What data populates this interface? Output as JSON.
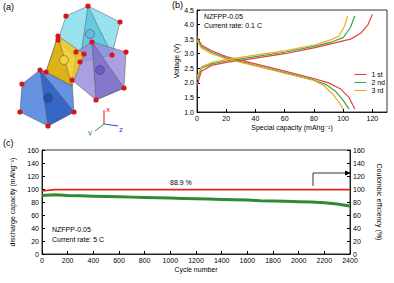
{
  "diagram": {
    "label": "(a)",
    "axes": [
      "x",
      "y",
      "z"
    ]
  },
  "chart_data": [
    {
      "type": "line",
      "title": "(b)",
      "x_label": "Special capacity (mAhg⁻¹)",
      "y_label": "Voltage (V)",
      "annotations": [
        "NZFPP-0.05",
        "Current rate: 0.1 C"
      ],
      "xlim": [
        0,
        130
      ],
      "xticks": [
        0,
        20,
        40,
        60,
        80,
        100,
        120
      ],
      "ylim": [
        1,
        4.5
      ],
      "yticks": [
        {
          "value": 1,
          "label": "1.0"
        },
        1.5,
        {
          "value": 2,
          "label": "2.0"
        },
        2.5,
        {
          "value": 3,
          "label": "3.0"
        },
        3.5,
        {
          "value": 4,
          "label": "4.0"
        },
        4.5
      ],
      "grid": false,
      "legend": "lower right",
      "series": [
        {
          "name": "1 st",
          "color": "#e8403a",
          "x": [
            0,
            3,
            10,
            20,
            40,
            60,
            80,
            95,
            105,
            112,
            117,
            120,
            null,
            0,
            3,
            10,
            20,
            40,
            60,
            80,
            90,
            98,
            104,
            108
          ],
          "values": [
            1.9,
            2.4,
            2.6,
            2.7,
            2.85,
            3.0,
            3.2,
            3.38,
            3.5,
            3.7,
            4.0,
            4.35,
            null,
            3.6,
            3.3,
            3.1,
            2.9,
            2.65,
            2.4,
            2.15,
            2.0,
            1.8,
            1.5,
            1.1
          ]
        },
        {
          "name": "2 nd",
          "color": "#3aa64a",
          "x": [
            0,
            3,
            10,
            20,
            40,
            60,
            80,
            92,
            100,
            105,
            108,
            null,
            0,
            3,
            10,
            20,
            40,
            60,
            80,
            88,
            95,
            100,
            104
          ],
          "values": [
            2.1,
            2.5,
            2.65,
            2.75,
            2.9,
            3.05,
            3.25,
            3.4,
            3.55,
            3.9,
            4.3,
            null,
            3.5,
            3.25,
            3.05,
            2.85,
            2.6,
            2.35,
            2.1,
            1.95,
            1.7,
            1.4,
            1.1
          ]
        },
        {
          "name": "3 rd",
          "color": "#f5a623",
          "x": [
            0,
            3,
            10,
            20,
            40,
            60,
            80,
            90,
            97,
            101,
            103,
            null,
            0,
            3,
            10,
            20,
            40,
            60,
            80,
            87,
            93,
            97,
            100
          ],
          "values": [
            2.2,
            2.55,
            2.7,
            2.8,
            2.95,
            3.1,
            3.3,
            3.45,
            3.6,
            3.95,
            4.3,
            null,
            3.45,
            3.2,
            3.0,
            2.82,
            2.58,
            2.33,
            2.08,
            1.9,
            1.6,
            1.35,
            1.1
          ]
        }
      ]
    },
    {
      "type": "line",
      "title": "(c)",
      "x_label": "Cycle number",
      "y_label": "discharge capacity (mAhg⁻¹)",
      "y2_label": "Coulombic efficiency (%)",
      "annotations": [
        "88.9 %",
        "NZFPP-0.05",
        "Current rate: 5 C"
      ],
      "xlim": [
        0,
        2400
      ],
      "xticks": [
        0,
        200,
        400,
        600,
        800,
        1000,
        1200,
        1400,
        1600,
        1800,
        2000,
        2200,
        2400
      ],
      "ylim": [
        0,
        160
      ],
      "yticks": [
        0,
        20,
        40,
        60,
        80,
        100,
        120,
        140,
        160
      ],
      "y2lim": [
        0,
        160
      ],
      "y2ticks": [
        0,
        20,
        40,
        60,
        80,
        100,
        120,
        140,
        160
      ],
      "grid": false,
      "x": [
        0,
        100,
        200,
        300,
        400,
        500,
        600,
        700,
        800,
        900,
        1000,
        1100,
        1200,
        1300,
        1400,
        1500,
        1600,
        1700,
        1800,
        1900,
        2000,
        2100,
        2200,
        2300,
        2400
      ],
      "series": [
        {
          "color": "#2e8b2e",
          "values": [
            90,
            91,
            90,
            89.5,
            89,
            88.5,
            88,
            87.5,
            87,
            86.5,
            86,
            85.5,
            85,
            84.5,
            84,
            83.5,
            83,
            82,
            81.5,
            81,
            80.5,
            80,
            79,
            77,
            74
          ]
        },
        {
          "color": "#e82020",
          "axis": "y2",
          "values": [
            97,
            99,
            99,
            99,
            99,
            99,
            99,
            99,
            99,
            99,
            99,
            99,
            99,
            99,
            99,
            99,
            99,
            99,
            99,
            99,
            99,
            99,
            99,
            99,
            99
          ]
        }
      ]
    }
  ]
}
